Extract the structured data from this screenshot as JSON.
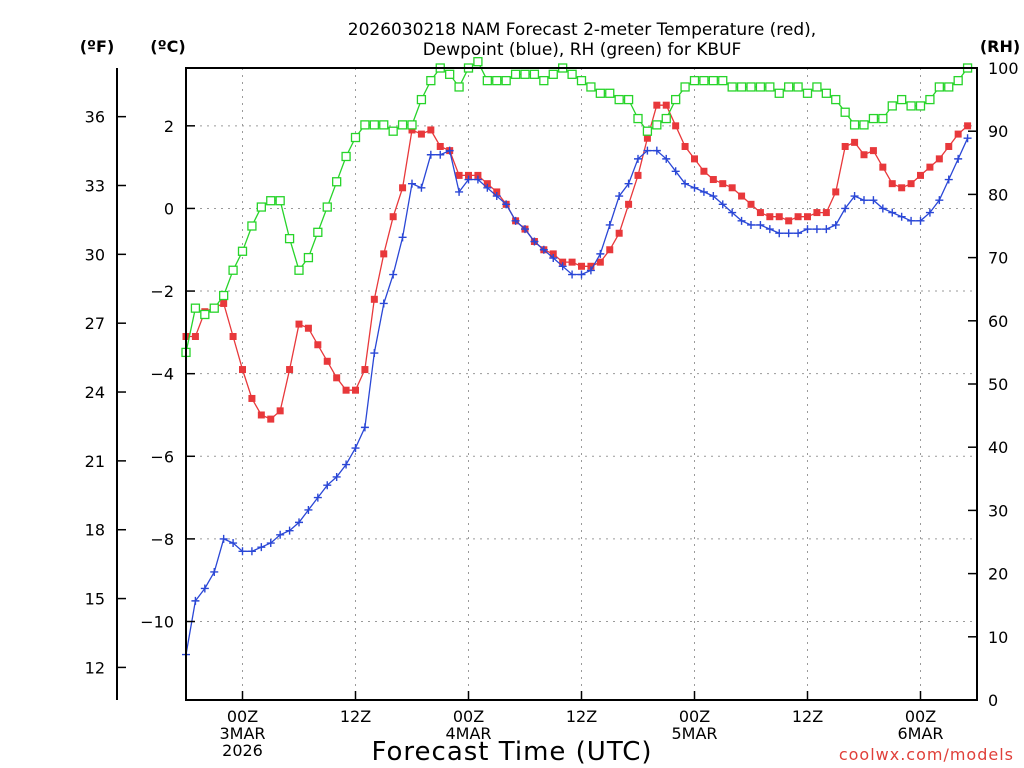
{
  "chart_data": {
    "type": "line",
    "title_line1": "2026030218 NAM Forecast 2-meter Temperature (red),",
    "title_line2": "Dewpoint (blue), RH (green) for KBUF",
    "xlabel": "Forecast Time (UTC)",
    "credit": "coolwx.com/models",
    "unit_f": "(ºF)",
    "unit_c": "(ºC)",
    "unit_rh": "(RH)",
    "x_start_hour": 18,
    "x_end_hour": 102,
    "x_ticks": [
      {
        "hour": 24,
        "lines": [
          "00Z",
          "3MAR",
          "2026"
        ]
      },
      {
        "hour": 36,
        "lines": [
          "12Z"
        ]
      },
      {
        "hour": 48,
        "lines": [
          "00Z",
          "4MAR"
        ]
      },
      {
        "hour": 60,
        "lines": [
          "12Z"
        ]
      },
      {
        "hour": 72,
        "lines": [
          "00Z",
          "5MAR"
        ]
      },
      {
        "hour": 84,
        "lines": [
          "12Z"
        ]
      },
      {
        "hour": 96,
        "lines": [
          "00Z",
          "6MAR"
        ]
      }
    ],
    "ylim_c": [
      -11.9,
      3.4
    ],
    "yticks_c": [
      "−10",
      "−8",
      "−6",
      "−4",
      "−2",
      "0",
      "2"
    ],
    "yticks_f": [
      "12",
      "15",
      "18",
      "21",
      "24",
      "27",
      "30",
      "33",
      "36"
    ],
    "ylim_rh": [
      0,
      100
    ],
    "yticks_rh": [
      "0",
      "10",
      "20",
      "30",
      "40",
      "50",
      "60",
      "70",
      "80",
      "90",
      "100"
    ],
    "series": [
      {
        "name": "Temperature",
        "unit": "C",
        "color": "#e8383b",
        "marker": "filled-square",
        "values": [
          -3.1,
          -3.1,
          -2.5,
          -2.4,
          -2.3,
          -3.1,
          -3.9,
          -4.6,
          -5.0,
          -5.1,
          -4.9,
          -3.9,
          -2.8,
          -2.9,
          -3.3,
          -3.7,
          -4.1,
          -4.4,
          -4.4,
          -3.9,
          -2.2,
          -1.1,
          -0.2,
          0.5,
          1.9,
          1.8,
          1.9,
          1.5,
          1.4,
          0.8,
          0.8,
          0.8,
          0.6,
          0.4,
          0.1,
          -0.3,
          -0.5,
          -0.8,
          -1.0,
          -1.1,
          -1.3,
          -1.3,
          -1.4,
          -1.4,
          -1.3,
          -1.0,
          -0.6,
          0.1,
          0.8,
          1.7,
          2.5,
          2.5,
          2.0,
          1.5,
          1.2,
          0.9,
          0.7,
          0.6,
          0.5,
          0.3,
          0.1,
          -0.1,
          -0.2,
          -0.2,
          -0.3,
          -0.2,
          -0.2,
          -0.1,
          -0.1,
          0.4,
          1.5,
          1.6,
          1.3,
          1.4,
          1.0,
          0.6,
          0.5,
          0.6,
          0.8,
          1.0,
          1.2,
          1.5,
          1.8,
          2.0
        ]
      },
      {
        "name": "Dewpoint",
        "unit": "C",
        "color": "#2a47d6",
        "marker": "plus",
        "values": [
          -10.8,
          -9.5,
          -9.2,
          -8.8,
          -8.0,
          -8.1,
          -8.3,
          -8.3,
          -8.2,
          -8.1,
          -7.9,
          -7.8,
          -7.6,
          -7.3,
          -7.0,
          -6.7,
          -6.5,
          -6.2,
          -5.8,
          -5.3,
          -3.5,
          -2.3,
          -1.6,
          -0.7,
          0.6,
          0.5,
          1.3,
          1.3,
          1.4,
          0.4,
          0.7,
          0.7,
          0.5,
          0.3,
          0.1,
          -0.3,
          -0.5,
          -0.8,
          -1.0,
          -1.2,
          -1.4,
          -1.6,
          -1.6,
          -1.5,
          -1.1,
          -0.4,
          0.3,
          0.6,
          1.2,
          1.4,
          1.4,
          1.2,
          0.9,
          0.6,
          0.5,
          0.4,
          0.3,
          0.1,
          -0.1,
          -0.3,
          -0.4,
          -0.4,
          -0.5,
          -0.6,
          -0.6,
          -0.6,
          -0.5,
          -0.5,
          -0.5,
          -0.4,
          0.0,
          0.3,
          0.2,
          0.2,
          0.0,
          -0.1,
          -0.2,
          -0.3,
          -0.3,
          -0.1,
          0.2,
          0.7,
          1.2,
          1.7
        ]
      },
      {
        "name": "RH",
        "unit": "%",
        "color": "#27d42a",
        "marker": "open-square",
        "values": [
          55,
          62,
          61,
          62,
          64,
          68,
          71,
          75,
          78,
          79,
          79,
          73,
          68,
          70,
          74,
          78,
          82,
          86,
          89,
          91,
          91,
          91,
          90,
          91,
          91,
          95,
          98,
          100,
          99,
          97,
          100,
          101,
          98,
          98,
          98,
          99,
          99,
          99,
          98,
          99,
          100,
          99,
          98,
          97,
          96,
          96,
          95,
          95,
          92,
          90,
          91,
          92,
          95,
          97,
          98,
          98,
          98,
          98,
          97,
          97,
          97,
          97,
          97,
          96,
          97,
          97,
          96,
          97,
          96,
          95,
          93,
          91,
          91,
          92,
          92,
          94,
          95,
          94,
          94,
          95,
          97,
          97,
          98,
          100
        ]
      }
    ]
  }
}
